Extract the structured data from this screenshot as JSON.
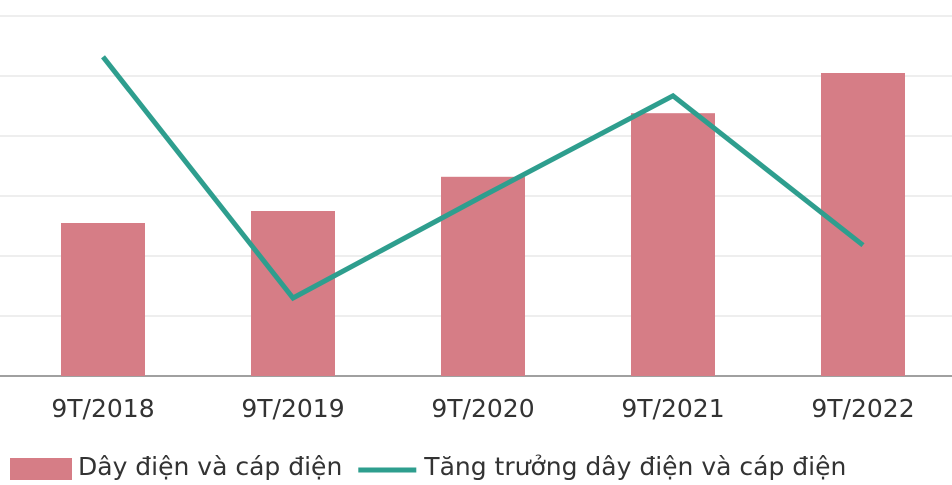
{
  "chart_data": {
    "type": "bar",
    "categories": [
      "9T/2018",
      "9T/2019",
      "9T/2020",
      "9T/2021",
      "9T/2022"
    ],
    "series": [
      {
        "name": "Dây điện và cáp điện",
        "type": "bar",
        "color": "#d67d86",
        "values": [
          2.55,
          2.75,
          3.32,
          4.38,
          5.05
        ]
      },
      {
        "name": "Tăng trưởng dây điện và cáp điện",
        "type": "line",
        "color": "#2e9e8e",
        "values": [
          5.32,
          1.3,
          3.0,
          4.67,
          2.18
        ]
      }
    ],
    "ylim": [
      0,
      6
    ],
    "yticks": [
      0,
      1,
      2,
      3,
      4,
      5,
      6
    ],
    "grid": true
  }
}
